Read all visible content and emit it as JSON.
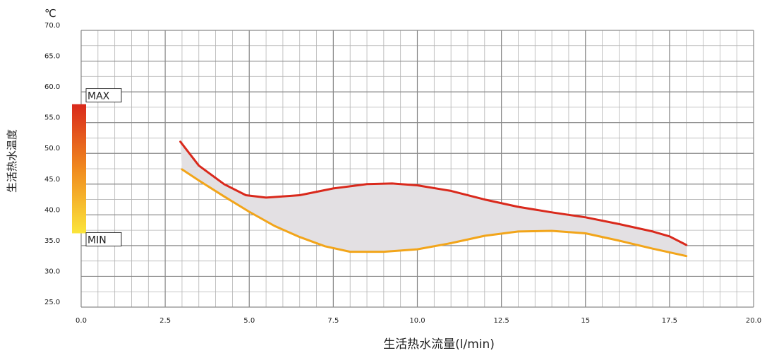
{
  "chart_data": {
    "type": "area",
    "title": "",
    "unit_label": "℃",
    "xlabel": "生活热水流量(l/min)",
    "ylabel": "生活热水温度",
    "xlim": [
      0,
      20
    ],
    "ylim": [
      25,
      70
    ],
    "grid": true,
    "x_ticks": [
      "0.0",
      "2.5",
      "5.0",
      "7.5",
      "10.0",
      "12.5",
      "15",
      "17.5",
      "20.0"
    ],
    "y_ticks": [
      "25.0",
      "30.0",
      "35.0",
      "40.0",
      "45.0",
      "50.0",
      "55.0",
      "60.0",
      "65.0",
      "70.0"
    ],
    "series": [
      {
        "color": "#d9291c",
        "x": [
          2.95,
          3.5,
          4.25,
          4.9,
          5.5,
          6.5,
          7.5,
          8.5,
          9.25,
          10.0,
          11.0,
          12.0,
          13.0,
          14.0,
          15.0,
          16.0,
          17.0,
          17.5,
          18.0
        ],
        "y": [
          51.9,
          48.0,
          45.0,
          43.2,
          42.8,
          43.2,
          44.3,
          45.0,
          45.1,
          44.8,
          43.9,
          42.5,
          41.3,
          40.4,
          39.6,
          38.5,
          37.3,
          36.5,
          35.1
        ]
      },
      {
        "color": "#f2a51a",
        "x": [
          3.0,
          3.5,
          4.25,
          5.0,
          5.75,
          6.5,
          7.25,
          8.0,
          9.0,
          10.0,
          11.0,
          12.0,
          13.0,
          14.0,
          15.0,
          16.0,
          17.0,
          18.0
        ],
        "y": [
          47.4,
          45.6,
          43.0,
          40.5,
          38.2,
          36.4,
          34.9,
          34.0,
          34.0,
          34.4,
          35.4,
          36.6,
          37.3,
          37.4,
          37.0,
          35.8,
          34.5,
          33.3
        ]
      }
    ],
    "shaded_band": {
      "between": "series",
      "color": "#e3e0e3"
    },
    "indicator": {
      "max_label": "MAX",
      "min_label": "MIN",
      "max_value": 58,
      "min_value": 37,
      "gradient_top": "#d9291c",
      "gradient_bottom": "#fbe53a"
    },
    "colors": {
      "grid_major": "#8a8a8a",
      "grid_minor": "#b5b5b5"
    }
  }
}
